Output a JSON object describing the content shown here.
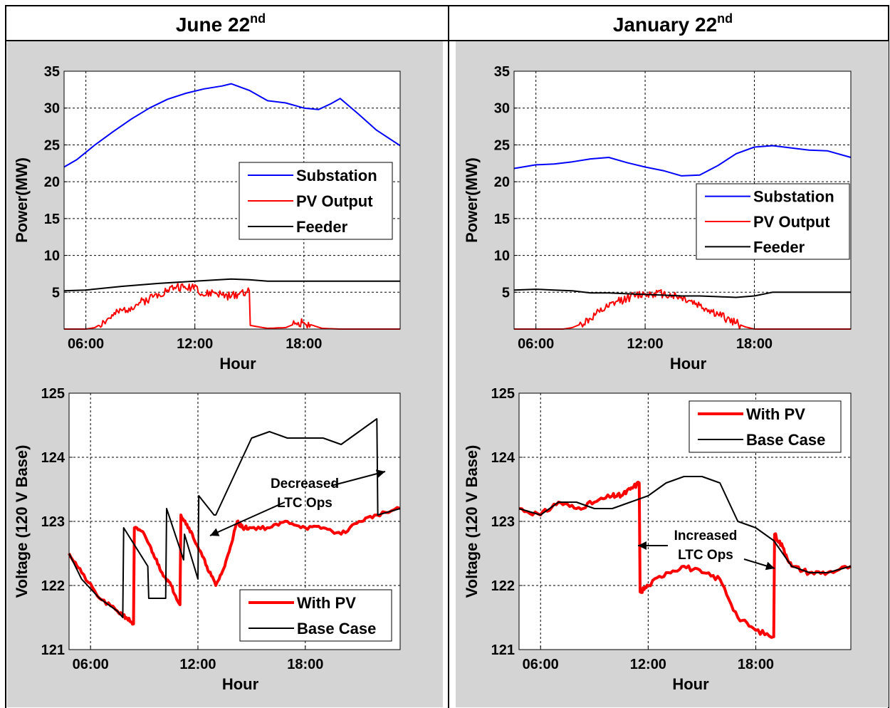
{
  "figure": {
    "panel_titles": [
      "June 22",
      "January 22"
    ],
    "title_superscript": "nd",
    "background_color": "#d4d4d4",
    "frame_color": "#000000"
  },
  "chart_data": [
    {
      "type": "line",
      "title": "June 22nd",
      "xlabel": "Hour",
      "ylabel": "Power(MW)",
      "xlim": [
        4.8,
        23.3
      ],
      "ylim": [
        0,
        35
      ],
      "yticks": [
        5,
        10,
        15,
        20,
        25,
        30,
        35
      ],
      "xticks": [
        6,
        12,
        18
      ],
      "xtick_labels": [
        "06:00",
        "12:00",
        "18:00"
      ],
      "grid": true,
      "legend_position": "center-right",
      "series": [
        {
          "name": "Substation",
          "color": "#0000ff",
          "width": 2,
          "jitter": 0,
          "x": [
            4.8,
            5.5,
            6.5,
            7.5,
            8.5,
            9.5,
            10.5,
            11.5,
            12.5,
            13.5,
            14.0,
            15.0,
            16.0,
            17.0,
            18.0,
            18.8,
            19.5,
            20.0,
            21.0,
            22.0,
            23.3
          ],
          "y": [
            22.0,
            23.0,
            25.0,
            26.8,
            28.5,
            30.0,
            31.2,
            32.0,
            32.6,
            33.0,
            33.3,
            32.4,
            31.0,
            30.7,
            30.0,
            29.8,
            30.6,
            31.3,
            29.2,
            27.0,
            24.9
          ]
        },
        {
          "name": "PV Output",
          "color": "#ff0000",
          "width": 2,
          "jitter": 0.6,
          "x": [
            4.8,
            6.0,
            6.5,
            7.0,
            7.5,
            8.0,
            8.5,
            9.0,
            9.5,
            10.0,
            10.5,
            11.0,
            11.5,
            12.0,
            12.5,
            13.0,
            13.5,
            14.0,
            14.5,
            15.0,
            15.05,
            15.5,
            16.0,
            17.0,
            17.5,
            18.0,
            18.5,
            19.0,
            20.0,
            23.3
          ],
          "y": [
            0,
            0,
            0.2,
            1.0,
            1.8,
            2.5,
            3.0,
            3.6,
            4.2,
            4.8,
            5.3,
            5.8,
            5.5,
            6.0,
            4.5,
            5.0,
            4.6,
            4.4,
            5.0,
            5.2,
            0.5,
            0.3,
            0.1,
            0.2,
            0.7,
            0.9,
            0.5,
            0.1,
            0,
            0
          ]
        },
        {
          "name": "Feeder",
          "color": "#000000",
          "width": 2,
          "jitter": 0,
          "x": [
            4.8,
            6.0,
            8.0,
            10.0,
            12.0,
            14.0,
            15.0,
            16.0,
            18.0,
            20.0,
            23.3
          ],
          "y": [
            5.2,
            5.3,
            5.8,
            6.2,
            6.5,
            6.8,
            6.7,
            6.5,
            6.5,
            6.5,
            6.5
          ]
        }
      ]
    },
    {
      "type": "line",
      "title": "January 22nd",
      "xlabel": "Hour",
      "ylabel": "Power(MW)",
      "xlim": [
        4.8,
        23.3
      ],
      "ylim": [
        0,
        35
      ],
      "yticks": [
        5,
        10,
        15,
        20,
        25,
        30,
        35
      ],
      "xticks": [
        6,
        12,
        18
      ],
      "xtick_labels": [
        "06:00",
        "12:00",
        "18:00"
      ],
      "grid": true,
      "legend_position": "center-right",
      "series": [
        {
          "name": "Substation",
          "color": "#0000ff",
          "width": 2,
          "jitter": 0,
          "x": [
            4.8,
            6.0,
            7.0,
            8.0,
            9.0,
            10.0,
            11.0,
            12.0,
            13.0,
            14.0,
            15.0,
            16.0,
            17.0,
            18.0,
            19.0,
            20.0,
            21.0,
            22.0,
            23.3
          ],
          "y": [
            21.8,
            22.3,
            22.4,
            22.7,
            23.1,
            23.3,
            22.6,
            22.0,
            21.5,
            20.8,
            20.9,
            22.2,
            23.8,
            24.7,
            24.9,
            24.6,
            24.3,
            24.2,
            23.3
          ]
        },
        {
          "name": "PV Output",
          "color": "#ff0000",
          "width": 2,
          "jitter": 0.6,
          "x": [
            4.8,
            7.5,
            8.0,
            8.5,
            9.0,
            9.5,
            10.0,
            10.5,
            11.0,
            11.5,
            12.0,
            12.5,
            13.0,
            13.5,
            14.0,
            14.5,
            15.0,
            15.5,
            16.0,
            16.5,
            17.0,
            17.5,
            18.0,
            23.3
          ],
          "y": [
            0,
            0,
            0.2,
            0.7,
            1.4,
            2.3,
            3.0,
            3.8,
            4.2,
            4.6,
            4.8,
            4.9,
            4.8,
            4.6,
            4.3,
            3.8,
            3.2,
            2.6,
            2.0,
            1.4,
            0.8,
            0.3,
            0,
            0
          ]
        },
        {
          "name": "Feeder",
          "color": "#000000",
          "width": 2,
          "jitter": 0,
          "x": [
            4.8,
            6.0,
            7.0,
            8.0,
            9.0,
            10.0,
            11.0,
            12.0,
            13.0,
            14.0,
            15.0,
            16.0,
            17.0,
            18.0,
            19.0,
            20.0,
            23.3
          ],
          "y": [
            5.3,
            5.4,
            5.3,
            5.2,
            4.9,
            4.9,
            4.8,
            4.7,
            4.6,
            4.5,
            4.5,
            4.4,
            4.3,
            4.5,
            5.0,
            5.0,
            5.0
          ]
        }
      ]
    },
    {
      "type": "line",
      "title": "",
      "xlabel": "Hour",
      "ylabel": "Voltage (120 V Base)",
      "xlim": [
        4.8,
        23.3
      ],
      "ylim": [
        121,
        125
      ],
      "yticks": [
        121,
        122,
        123,
        124,
        125
      ],
      "xticks": [
        6,
        12,
        18
      ],
      "xtick_labels": [
        "06:00",
        "12:00",
        "18:00"
      ],
      "grid": true,
      "legend_position": "bottom-right",
      "annotation": {
        "lines": [
          "Decreased",
          "LTC Ops"
        ]
      },
      "series": [
        {
          "name": "With PV",
          "color": "#ff0000",
          "width": 4,
          "jitter": 0.03,
          "x": [
            4.8,
            5.5,
            6.5,
            7.5,
            8.0,
            8.4,
            8.45,
            9.0,
            9.5,
            10.0,
            10.5,
            11.0,
            11.05,
            11.5,
            12.0,
            12.5,
            13.0,
            13.5,
            14.0,
            14.2,
            14.5,
            15.0,
            16.0,
            17.0,
            18.0,
            19.0,
            20.0,
            21.0,
            22.0,
            23.3
          ],
          "y": [
            122.5,
            122.2,
            121.8,
            121.6,
            121.5,
            121.4,
            122.9,
            122.8,
            122.5,
            122.2,
            122.0,
            121.7,
            123.1,
            122.9,
            122.6,
            122.3,
            122.0,
            122.3,
            122.8,
            123.0,
            122.9,
            122.9,
            122.9,
            123.0,
            122.9,
            122.9,
            122.8,
            123.0,
            123.1,
            123.2
          ]
        },
        {
          "name": "Base Case",
          "color": "#000000",
          "width": 2,
          "jitter": 0,
          "x": [
            4.8,
            5.5,
            6.5,
            7.5,
            7.8,
            7.85,
            9.2,
            9.25,
            10.2,
            10.25,
            11.2,
            11.25,
            12.0,
            12.05,
            12.9,
            13.0,
            14.0,
            15.0,
            16.0,
            17.0,
            18.0,
            19.0,
            20.0,
            21.0,
            22.0,
            22.05,
            23.3
          ],
          "y": [
            122.5,
            122.1,
            121.8,
            121.6,
            121.5,
            122.9,
            122.3,
            121.8,
            121.8,
            123.2,
            122.4,
            122.8,
            122.1,
            123.4,
            123.1,
            123.1,
            123.7,
            124.3,
            124.4,
            124.3,
            124.3,
            124.3,
            124.2,
            124.4,
            124.6,
            123.1,
            123.2
          ]
        }
      ]
    },
    {
      "type": "line",
      "title": "",
      "xlabel": "Hour",
      "ylabel": "Voltage (120 V Base)",
      "xlim": [
        4.8,
        23.3
      ],
      "ylim": [
        121,
        125
      ],
      "yticks": [
        121,
        122,
        123,
        124,
        125
      ],
      "xticks": [
        6,
        12,
        18
      ],
      "xtick_labels": [
        "06:00",
        "12:00",
        "18:00"
      ],
      "grid": true,
      "legend_position": "top-right",
      "annotation": {
        "lines": [
          "Increased",
          "LTC Ops"
        ]
      },
      "series": [
        {
          "name": "With PV",
          "color": "#ff0000",
          "width": 4,
          "jitter": 0.04,
          "x": [
            4.8,
            6.0,
            7.0,
            8.0,
            9.0,
            10.0,
            10.5,
            11.0,
            11.5,
            11.55,
            12.0,
            13.0,
            14.0,
            15.0,
            16.0,
            17.0,
            18.0,
            19.0,
            19.05,
            19.5,
            20.0,
            21.0,
            22.0,
            23.3
          ],
          "y": [
            123.2,
            123.1,
            123.3,
            123.2,
            123.3,
            123.4,
            123.4,
            123.5,
            123.6,
            121.9,
            122.0,
            122.2,
            122.3,
            122.2,
            122.1,
            121.5,
            121.3,
            121.2,
            122.8,
            122.6,
            122.3,
            122.2,
            122.2,
            122.3
          ]
        },
        {
          "name": "Base Case",
          "color": "#000000",
          "width": 2,
          "jitter": 0,
          "x": [
            4.8,
            6.0,
            7.0,
            8.0,
            9.0,
            10.0,
            11.0,
            12.0,
            13.0,
            14.0,
            15.0,
            16.0,
            17.0,
            18.0,
            19.0,
            20.0,
            21.0,
            22.0,
            23.3
          ],
          "y": [
            123.2,
            123.1,
            123.3,
            123.3,
            123.2,
            123.2,
            123.3,
            123.4,
            123.6,
            123.7,
            123.7,
            123.6,
            123.0,
            122.9,
            122.7,
            122.3,
            122.2,
            122.2,
            122.3
          ]
        }
      ]
    }
  ]
}
